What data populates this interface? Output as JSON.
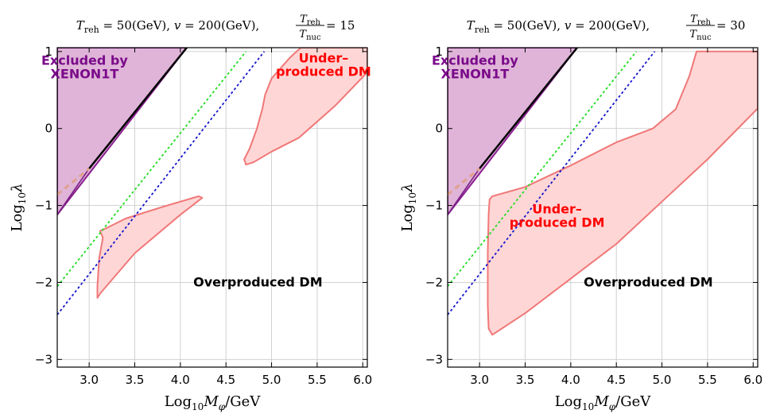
{
  "chart_data": [
    {
      "type": "area",
      "title": {
        "t_reh_label": "T",
        "t_reh_sub": "reh",
        "t_reh_value": " = 50(GeV),",
        "vev_label": "v",
        "vev_value": " = 200(GeV),",
        "ratio_num": "T",
        "ratio_num_sub": "reh",
        "ratio_den": "T",
        "ratio_den_sub": "nuc",
        "ratio_value": " = 15"
      },
      "xlabel": {
        "main": "Log",
        "sub": "10",
        "rest": "M",
        "phi": "φ",
        "unit": "/GeV"
      },
      "ylabel": {
        "main": "Log",
        "sub": "10",
        "rest": "λ"
      },
      "xlim": [
        2.65,
        6.05
      ],
      "ylim": [
        -3.1,
        1.05
      ],
      "grid": true,
      "xticks": [
        "3.0",
        "3.5",
        "4.0",
        "4.5",
        "5.0",
        "5.5",
        "6.0"
      ],
      "yticks": [
        "1",
        "0",
        "−1",
        "−2",
        "−3"
      ],
      "series": [
        {
          "kind": "excluded-region",
          "color": "#dfb4d8",
          "edge": "#8a2090",
          "points": [
            [
              2.65,
              -1.12
            ],
            [
              2.65,
              1.05
            ],
            [
              4.07,
              1.05
            ]
          ]
        },
        {
          "kind": "underproduced-region",
          "color": "#ffd6d6",
          "edge": "#f07878",
          "points": [
            [
              3.12,
              -1.33
            ],
            [
              3.15,
              -1.42
            ],
            [
              3.11,
              -1.68
            ],
            [
              3.09,
              -2.05
            ],
            [
              3.09,
              -2.2
            ],
            [
              3.13,
              -2.13
            ],
            [
              3.5,
              -1.62
            ],
            [
              4.0,
              -1.12
            ],
            [
              4.24,
              -0.9
            ],
            [
              4.2,
              -0.88
            ],
            [
              3.8,
              -1.02
            ],
            [
              3.4,
              -1.17
            ],
            [
              3.18,
              -1.3
            ]
          ]
        },
        {
          "kind": "underproduced-region",
          "color": "#ffd6d6",
          "edge": "#f07878",
          "points": [
            [
              4.72,
              -0.47
            ],
            [
              4.7,
              -0.4
            ],
            [
              4.76,
              -0.26
            ],
            [
              4.84,
              0.0
            ],
            [
              4.9,
              0.26
            ],
            [
              4.93,
              0.44
            ],
            [
              5.0,
              0.65
            ],
            [
              5.2,
              0.92
            ],
            [
              5.32,
              1.05
            ],
            [
              6.05,
              1.05
            ],
            [
              6.05,
              0.73
            ],
            [
              5.7,
              0.3
            ],
            [
              5.3,
              -0.12
            ],
            [
              5.0,
              -0.3
            ],
            [
              4.8,
              -0.44
            ]
          ]
        },
        {
          "kind": "line",
          "color": "#000000",
          "width": 2.5,
          "points": [
            [
              3.0,
              -0.52
            ],
            [
              4.07,
              1.05
            ]
          ]
        },
        {
          "kind": "line",
          "color": "#7a1f86",
          "width": 1.6,
          "points": [
            [
              2.65,
              -1.12
            ],
            [
              3.0,
              -0.52
            ]
          ]
        },
        {
          "kind": "line",
          "color": "#e0a08a",
          "width": 3,
          "dash": "7,5",
          "points": [
            [
              2.65,
              -0.86
            ],
            [
              3.0,
              -0.52
            ]
          ]
        },
        {
          "kind": "line",
          "color": "#22dd22",
          "width": 1.8,
          "dash": "3,3",
          "points": [
            [
              2.65,
              -2.05
            ],
            [
              4.72,
              1.0
            ]
          ]
        },
        {
          "kind": "line",
          "color": "#1515cc",
          "width": 1.8,
          "dash": "3,3",
          "points": [
            [
              2.65,
              -2.42
            ],
            [
              4.92,
              1.0
            ]
          ]
        }
      ],
      "annotations": [
        {
          "lines": [
            "Excluded by",
            "XENON1T"
          ],
          "color": "#7a0a8a",
          "at": [
            2.95,
            0.83
          ]
        },
        {
          "lines": [
            "Under–",
            "produced DM"
          ],
          "color": "#ff0000",
          "at": [
            5.57,
            0.86
          ]
        },
        {
          "lines": [
            "Overproduced DM"
          ],
          "color": "#000000",
          "at": [
            4.85,
            -2.05
          ]
        }
      ]
    },
    {
      "type": "area",
      "title": {
        "t_reh_label": "T",
        "t_reh_sub": "reh",
        "t_reh_value": " = 50(GeV),",
        "vev_label": "v",
        "vev_value": " = 200(GeV),",
        "ratio_num": "T",
        "ratio_num_sub": "reh",
        "ratio_den": "T",
        "ratio_den_sub": "nuc",
        "ratio_value": " = 30"
      },
      "xlabel": {
        "main": "Log",
        "sub": "10",
        "rest": "M",
        "phi": "φ",
        "unit": "/GeV"
      },
      "ylabel": {
        "main": "Log",
        "sub": "10",
        "rest": "λ"
      },
      "xlim": [
        2.65,
        6.05
      ],
      "ylim": [
        -3.1,
        1.05
      ],
      "grid": true,
      "xticks": [
        "3.0",
        "3.5",
        "4.0",
        "4.5",
        "5.0",
        "5.5",
        "6.0"
      ],
      "yticks": [
        "1",
        "0",
        "−1",
        "−2",
        "−3"
      ],
      "series": [
        {
          "kind": "excluded-region",
          "color": "#dfb4d8",
          "edge": "#8a2090",
          "points": [
            [
              2.65,
              -1.12
            ],
            [
              2.65,
              1.05
            ],
            [
              4.07,
              1.05
            ]
          ]
        },
        {
          "kind": "underproduced-region",
          "color": "#ffd6d6",
          "edge": "#f07878",
          "points": [
            [
              3.14,
              -0.88
            ],
            [
              3.5,
              -0.76
            ],
            [
              4.0,
              -0.48
            ],
            [
              4.5,
              -0.18
            ],
            [
              4.9,
              0.0
            ],
            [
              5.15,
              0.25
            ],
            [
              5.3,
              0.68
            ],
            [
              5.38,
              1.0
            ],
            [
              6.05,
              1.0
            ],
            [
              6.05,
              0.26
            ],
            [
              5.5,
              -0.4
            ],
            [
              5.0,
              -0.95
            ],
            [
              4.5,
              -1.5
            ],
            [
              4.0,
              -1.95
            ],
            [
              3.5,
              -2.4
            ],
            [
              3.14,
              -2.68
            ],
            [
              3.1,
              -2.6
            ],
            [
              3.09,
              -2.3
            ],
            [
              3.09,
              -1.6
            ],
            [
              3.1,
              -1.1
            ],
            [
              3.11,
              -0.92
            ]
          ]
        },
        {
          "kind": "line",
          "color": "#000000",
          "width": 2.5,
          "points": [
            [
              3.0,
              -0.52
            ],
            [
              4.07,
              1.05
            ]
          ]
        },
        {
          "kind": "line",
          "color": "#7a1f86",
          "width": 1.6,
          "points": [
            [
              2.65,
              -1.12
            ],
            [
              3.0,
              -0.52
            ]
          ]
        },
        {
          "kind": "line",
          "color": "#e0a08a",
          "width": 3,
          "dash": "7,5",
          "points": [
            [
              2.65,
              -0.86
            ],
            [
              3.0,
              -0.52
            ]
          ]
        },
        {
          "kind": "line",
          "color": "#22dd22",
          "width": 1.8,
          "dash": "3,3",
          "points": [
            [
              2.65,
              -2.05
            ],
            [
              4.72,
              1.0
            ]
          ]
        },
        {
          "kind": "line",
          "color": "#1515cc",
          "width": 1.8,
          "dash": "3,3",
          "points": [
            [
              2.65,
              -2.42
            ],
            [
              4.92,
              1.0
            ]
          ]
        }
      ],
      "annotations": [
        {
          "lines": [
            "Excluded by",
            "XENON1T"
          ],
          "color": "#7a0a8a",
          "at": [
            2.95,
            0.83
          ]
        },
        {
          "lines": [
            "Under–",
            "produced DM"
          ],
          "color": "#ff0000",
          "at": [
            3.85,
            -1.1
          ]
        },
        {
          "lines": [
            "Overproduced DM"
          ],
          "color": "#000000",
          "at": [
            4.85,
            -2.05
          ]
        }
      ]
    }
  ]
}
